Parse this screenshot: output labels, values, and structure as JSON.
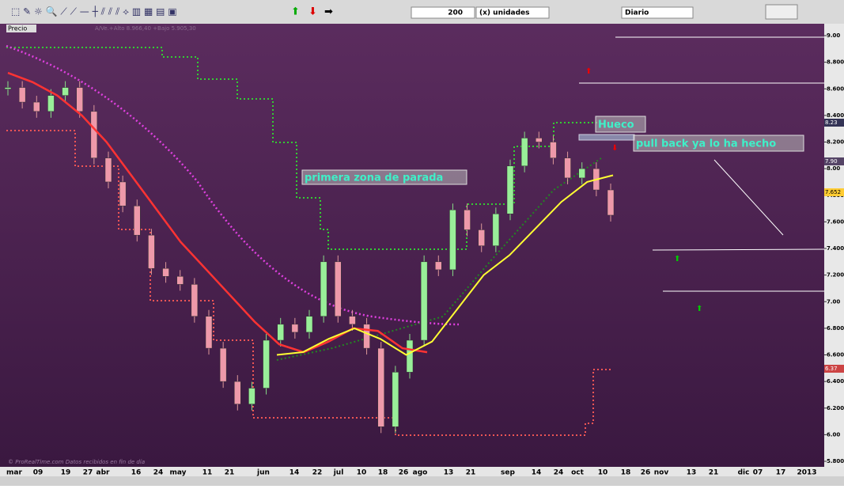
{
  "toolbar": {
    "quantity": "200",
    "units": "(x) unidades",
    "period": "Diario"
  },
  "panel": {
    "label": "Precio",
    "info": "A/Ve.+Alto 8.966,40 +Bajo 5.905,30"
  },
  "chart": {
    "yticks": [
      {
        "value": 9.0,
        "label": "9.00"
      },
      {
        "value": 8.8,
        "label": "8.800"
      },
      {
        "value": 8.6,
        "label": "8.600"
      },
      {
        "value": 8.4,
        "label": "8.400"
      },
      {
        "value": 8.2,
        "label": "8.200"
      },
      {
        "value": 8.0,
        "label": "8.00"
      },
      {
        "value": 7.8,
        "label": "7.800"
      },
      {
        "value": 7.6,
        "label": "7.600"
      },
      {
        "value": 7.4,
        "label": "7.400"
      },
      {
        "value": 7.2,
        "label": "7.200"
      },
      {
        "value": 7.0,
        "label": "7.00"
      },
      {
        "value": 6.8,
        "label": "6.800"
      },
      {
        "value": 6.6,
        "label": "6.600"
      },
      {
        "value": 6.4,
        "label": "6.400"
      },
      {
        "value": 6.2,
        "label": "6.200"
      },
      {
        "value": 6.0,
        "label": "6.00"
      },
      {
        "value": 5.8,
        "label": "5.800"
      }
    ],
    "ylim": [
      5.8,
      9.0
    ],
    "dates": [
      "mar",
      "09",
      "19",
      "27",
      "abr",
      "16",
      "24",
      "may",
      "11",
      "21",
      "jun",
      "14",
      "22",
      "jul",
      "10",
      "18",
      "26",
      "ago",
      "13",
      "21",
      "sep",
      "14",
      "24",
      "oct",
      "10",
      "18",
      "26",
      "nov",
      "13",
      "21",
      "dic",
      "07",
      "17",
      "2013"
    ],
    "price": [
      8.61,
      8.5,
      8.43,
      8.55,
      8.61,
      8.43,
      8.08,
      7.9,
      7.72,
      7.5,
      7.25,
      7.19,
      7.13,
      6.89,
      6.65,
      6.4,
      6.23,
      6.35,
      6.71,
      6.83,
      6.77,
      6.89,
      7.3,
      6.89,
      6.83,
      6.65,
      6.06,
      6.47,
      6.71,
      7.3,
      7.24,
      7.69,
      7.54,
      7.42,
      7.66,
      8.02,
      8.23,
      8.2,
      8.08,
      7.93,
      8.0,
      7.84,
      7.65
    ],
    "red_ma": [
      8.72,
      8.65,
      8.55,
      8.4,
      8.2,
      7.95,
      7.7,
      7.45,
      7.25,
      7.05,
      6.85,
      6.68,
      6.62,
      6.7,
      6.8,
      6.78,
      6.65,
      6.62
    ],
    "yellow_ma": [
      6.6,
      6.62,
      6.72,
      6.8,
      6.72,
      6.6,
      6.7,
      6.95,
      7.2,
      7.35,
      7.55,
      7.75,
      7.9,
      7.95
    ],
    "last_labels": [
      "8.23",
      "7.90",
      "7.652",
      "6.37"
    ],
    "annotations": [
      "primera zona de parada",
      "Hueco",
      "pull back ya lo ha hecho"
    ],
    "footer": "© ProRealTime.com  Datos recibidos en fin de día"
  }
}
